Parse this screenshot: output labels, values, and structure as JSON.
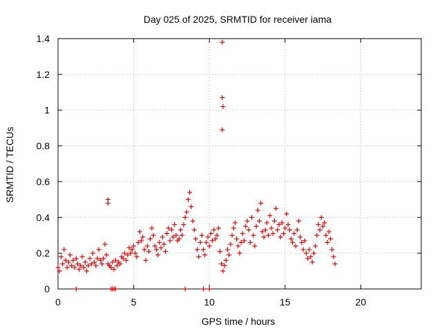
{
  "chart_data": {
    "type": "scatter",
    "title": "Day 025 of 2025, SRMTID for receiver iama",
    "xlabel": "GPS time / hours",
    "ylabel": "SRMTID / TECUs",
    "xlim": [
      0,
      24
    ],
    "ylim": [
      0,
      1.4
    ],
    "xticks": [
      0,
      5,
      10,
      15,
      20
    ],
    "xtick_labels": [
      "0",
      "5",
      "10",
      "15",
      "20"
    ],
    "yticks": [
      0,
      0.2,
      0.4,
      0.6,
      0.8,
      1.0,
      1.2,
      1.4
    ],
    "ytick_labels": [
      "0",
      "0.2",
      "0.4",
      "0.6",
      "0.8",
      "1",
      "1.2",
      "1.4"
    ],
    "grid": true,
    "marker": "+",
    "color": "#e00000",
    "series": [
      {
        "name": "SRMTID",
        "x": [
          0.0,
          0.1,
          0.2,
          0.3,
          0.4,
          0.5,
          0.6,
          0.7,
          0.8,
          0.9,
          1.0,
          1.1,
          1.2,
          1.3,
          1.4,
          1.5,
          1.6,
          1.7,
          1.8,
          1.9,
          2.0,
          2.1,
          2.2,
          2.3,
          2.4,
          2.5,
          2.6,
          2.7,
          2.8,
          2.9,
          3.0,
          3.1,
          3.2,
          3.3,
          3.4,
          3.5,
          3.6,
          3.7,
          3.8,
          3.9,
          4.0,
          4.1,
          4.2,
          4.3,
          4.4,
          4.5,
          4.6,
          4.7,
          4.8,
          4.9,
          5.0,
          5.1,
          5.2,
          5.3,
          5.4,
          5.5,
          5.6,
          5.7,
          5.8,
          5.9,
          6.0,
          6.1,
          6.2,
          6.3,
          6.4,
          6.5,
          6.6,
          6.7,
          6.8,
          6.9,
          7.0,
          7.1,
          7.2,
          7.3,
          7.4,
          7.5,
          7.6,
          7.7,
          7.8,
          7.9,
          8.0,
          8.1,
          8.2,
          8.3,
          8.4,
          8.5,
          8.6,
          8.7,
          8.8,
          8.9,
          9.0,
          9.1,
          9.2,
          9.3,
          9.4,
          9.5,
          9.6,
          9.7,
          9.8,
          9.9,
          10.0,
          10.1,
          10.2,
          10.3,
          10.4,
          10.5,
          10.6,
          10.7,
          10.8,
          10.9,
          11.0,
          11.1,
          11.2,
          11.3,
          11.4,
          11.5,
          11.6,
          11.7,
          11.8,
          11.9,
          12.0,
          12.1,
          12.2,
          12.3,
          12.4,
          12.5,
          12.6,
          12.7,
          12.8,
          12.9,
          13.0,
          13.1,
          13.2,
          13.3,
          13.4,
          13.5,
          13.6,
          13.7,
          13.8,
          13.9,
          14.0,
          14.1,
          14.2,
          14.3,
          14.4,
          14.5,
          14.6,
          14.7,
          14.8,
          14.9,
          15.0,
          15.1,
          15.2,
          15.3,
          15.4,
          15.5,
          15.6,
          15.7,
          15.8,
          15.9,
          16.0,
          16.1,
          16.2,
          16.3,
          16.4,
          16.5,
          16.6,
          16.7,
          16.8,
          16.9,
          17.0,
          17.1,
          17.2,
          17.3,
          17.4,
          17.5,
          17.6,
          17.7,
          17.8,
          17.9,
          18.0,
          18.1,
          18.2,
          18.3,
          3.3,
          3.3,
          10.85,
          10.85,
          10.9,
          10.85,
          1.2,
          3.5,
          3.6,
          3.7,
          3.8,
          8.4,
          9.6,
          10.0
        ],
        "y": [
          0.12,
          0.1,
          0.18,
          0.14,
          0.22,
          0.16,
          0.12,
          0.15,
          0.19,
          0.13,
          0.16,
          0.12,
          0.17,
          0.14,
          0.11,
          0.13,
          0.18,
          0.12,
          0.15,
          0.1,
          0.13,
          0.17,
          0.14,
          0.2,
          0.15,
          0.13,
          0.17,
          0.22,
          0.16,
          0.14,
          0.17,
          0.25,
          0.19,
          0.14,
          0.13,
          0.12,
          0.15,
          0.11,
          0.16,
          0.13,
          0.15,
          0.14,
          0.18,
          0.17,
          0.2,
          0.16,
          0.19,
          0.23,
          0.2,
          0.22,
          0.24,
          0.2,
          0.18,
          0.26,
          0.32,
          0.27,
          0.29,
          0.22,
          0.16,
          0.24,
          0.21,
          0.28,
          0.34,
          0.3,
          0.24,
          0.22,
          0.19,
          0.26,
          0.23,
          0.29,
          0.25,
          0.21,
          0.31,
          0.34,
          0.27,
          0.33,
          0.29,
          0.36,
          0.3,
          0.27,
          0.28,
          0.33,
          0.3,
          0.36,
          0.4,
          0.43,
          0.5,
          0.54,
          0.46,
          0.38,
          0.33,
          0.28,
          0.22,
          0.18,
          0.26,
          0.3,
          0.22,
          0.19,
          0.26,
          0.29,
          0.24,
          0.31,
          0.27,
          0.33,
          0.28,
          0.3,
          0.34,
          0.21,
          0.14,
          0.1,
          0.13,
          0.16,
          0.22,
          0.19,
          0.25,
          0.3,
          0.34,
          0.37,
          0.28,
          0.24,
          0.2,
          0.26,
          0.31,
          0.27,
          0.35,
          0.38,
          0.33,
          0.26,
          0.4,
          0.3,
          0.24,
          0.35,
          0.44,
          0.38,
          0.48,
          0.32,
          0.29,
          0.33,
          0.37,
          0.3,
          0.41,
          0.34,
          0.31,
          0.38,
          0.45,
          0.33,
          0.36,
          0.29,
          0.37,
          0.31,
          0.34,
          0.42,
          0.36,
          0.33,
          0.28,
          0.26,
          0.31,
          0.24,
          0.33,
          0.38,
          0.29,
          0.26,
          0.22,
          0.27,
          0.2,
          0.17,
          0.22,
          0.18,
          0.15,
          0.2,
          0.24,
          0.3,
          0.36,
          0.33,
          0.4,
          0.35,
          0.37,
          0.3,
          0.26,
          0.32,
          0.28,
          0.22,
          0.18,
          0.14,
          0.5,
          0.48,
          1.38,
          1.07,
          1.02,
          0.89,
          0.0,
          0.0,
          0.0,
          0.0,
          0.0,
          0.0,
          0.0,
          0.0
        ]
      }
    ]
  }
}
